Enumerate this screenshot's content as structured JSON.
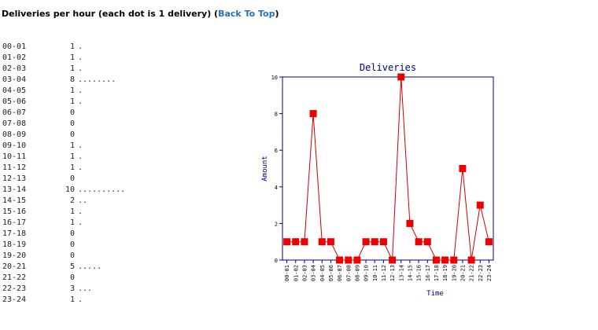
{
  "heading": {
    "title": "Deliveries per hour (each dot is 1 delivery) (",
    "link": "Back To Top",
    "close": ")"
  },
  "rows": [
    {
      "hour": "00-01",
      "count": "1",
      "dots": "."
    },
    {
      "hour": "01-02",
      "count": "1",
      "dots": "."
    },
    {
      "hour": "02-03",
      "count": "1",
      "dots": "."
    },
    {
      "hour": "03-04",
      "count": "8",
      "dots": "........"
    },
    {
      "hour": "04-05",
      "count": "1",
      "dots": "."
    },
    {
      "hour": "05-06",
      "count": "1",
      "dots": "."
    },
    {
      "hour": "06-07",
      "count": "0",
      "dots": ""
    },
    {
      "hour": "07-08",
      "count": "0",
      "dots": ""
    },
    {
      "hour": "08-09",
      "count": "0",
      "dots": ""
    },
    {
      "hour": "09-10",
      "count": "1",
      "dots": "."
    },
    {
      "hour": "10-11",
      "count": "1",
      "dots": "."
    },
    {
      "hour": "11-12",
      "count": "1",
      "dots": "."
    },
    {
      "hour": "12-13",
      "count": "0",
      "dots": ""
    },
    {
      "hour": "13-14",
      "count": "10",
      "dots": ".........."
    },
    {
      "hour": "14-15",
      "count": "2",
      "dots": ".."
    },
    {
      "hour": "15-16",
      "count": "1",
      "dots": "."
    },
    {
      "hour": "16-17",
      "count": "1",
      "dots": "."
    },
    {
      "hour": "17-18",
      "count": "0",
      "dots": ""
    },
    {
      "hour": "18-19",
      "count": "0",
      "dots": ""
    },
    {
      "hour": "19-20",
      "count": "0",
      "dots": ""
    },
    {
      "hour": "20-21",
      "count": "5",
      "dots": "....."
    },
    {
      "hour": "21-22",
      "count": "0",
      "dots": ""
    },
    {
      "hour": "22-23",
      "count": "3",
      "dots": "..."
    },
    {
      "hour": "23-24",
      "count": "1",
      "dots": "."
    }
  ],
  "chart_data": {
    "type": "line",
    "title": "Deliveries",
    "xlabel": "Time",
    "ylabel": "Amount",
    "categories": [
      "00-01",
      "01-02",
      "02-03",
      "03-04",
      "04-05",
      "05-06",
      "06-07",
      "07-08",
      "08-09",
      "09-10",
      "10-11",
      "11-12",
      "12-13",
      "13-14",
      "14-15",
      "15-16",
      "16-17",
      "17-18",
      "18-19",
      "19-20",
      "20-21",
      "21-22",
      "22-23",
      "23-24"
    ],
    "values": [
      1,
      1,
      1,
      8,
      1,
      1,
      0,
      0,
      0,
      1,
      1,
      1,
      0,
      10,
      2,
      1,
      1,
      0,
      0,
      0,
      5,
      0,
      3,
      1
    ],
    "ylim": [
      0,
      10
    ],
    "yticks": [
      "0",
      "2",
      "4",
      "6",
      "8",
      "10"
    ],
    "grid": false,
    "line_color": "#cc0000",
    "marker_color": "#ee0000",
    "frame_color": "#00007a",
    "title_color": "#000080"
  }
}
